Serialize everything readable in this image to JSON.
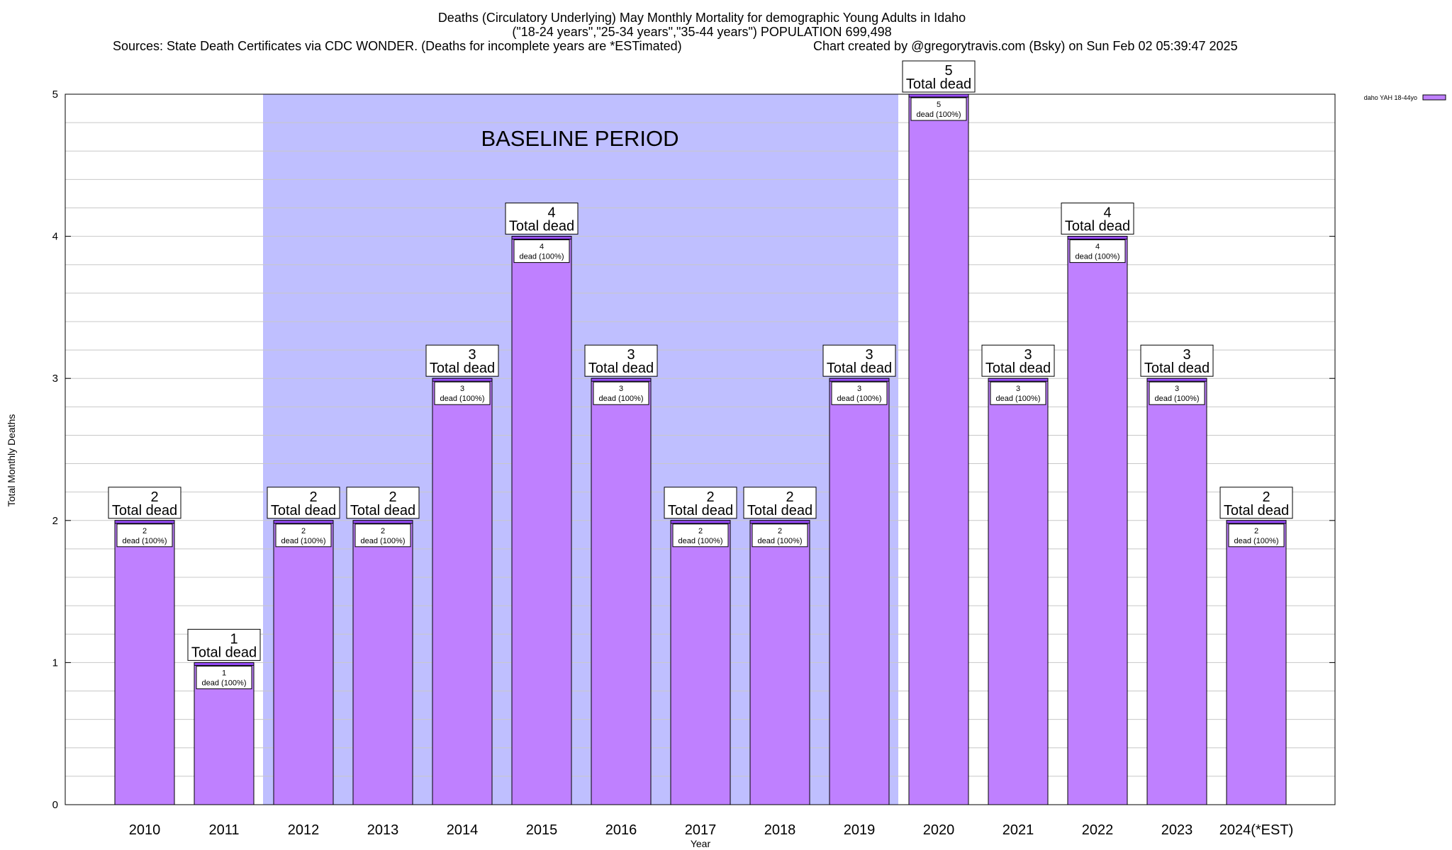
{
  "chart_data": {
    "type": "bar",
    "title_lines": [
      "Deaths (Circulatory Underlying) May Monthly Mortality for demographic Young Adults in Idaho",
      "(\"18-24 years\",\"25-34 years\",\"35-44 years\") POPULATION 699,498"
    ],
    "sources": "Sources: State Death Certificates via CDC WONDER. (Deaths for incomplete years are *ESTimated)",
    "credit": "Chart created by @gregorytravis.com (Bsky) on Sun Feb 02 05:39:47 2025",
    "xlabel": "Year",
    "ylabel": "Total Monthly Deaths",
    "ylim": [
      0,
      5
    ],
    "yticks": [
      "0",
      "1",
      "2",
      "3",
      "4",
      "5"
    ],
    "categories": [
      "2010",
      "2011",
      "2012",
      "2013",
      "2014",
      "2015",
      "2016",
      "2017",
      "2018",
      "2019",
      "2020",
      "2021",
      "2022",
      "2023",
      "2024(*EST)"
    ],
    "values": [
      2,
      1,
      2,
      2,
      3,
      4,
      3,
      2,
      2,
      3,
      5,
      3,
      4,
      3,
      2
    ],
    "total_label": "Total dead",
    "inner_label": "dead (100%)",
    "baseline": {
      "label": "BASELINE PERIOD",
      "start": "2012",
      "end": "2019"
    },
    "legend": {
      "label": "daho YAH 18-44yo",
      "placement": "top-right"
    },
    "colors": {
      "bar": "#bf80ff",
      "bar_top": "#9a4dff",
      "baseline": "#bfbfff",
      "grid": "#c8c8c8"
    }
  }
}
